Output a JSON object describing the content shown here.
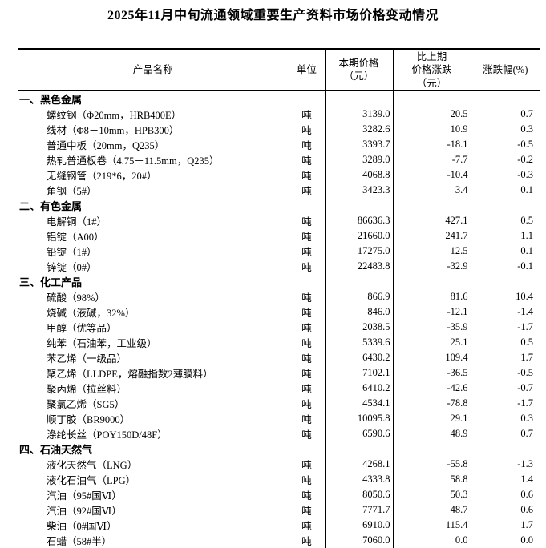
{
  "title": "2025年11月中旬流通领域重要生产资料市场价格变动情况",
  "table": {
    "headers": [
      "产品名称",
      "单位",
      "本期价格\n（元）",
      "比上期\n价格涨跌\n（元）",
      "涨跌幅(%)"
    ],
    "sections": [
      {
        "name": "一、黑色金属",
        "rows": [
          {
            "name": "螺纹钢（Φ20mm，HRB400E）",
            "unit": "吨",
            "price": "3139.0",
            "change": "20.5",
            "pct": "0.7"
          },
          {
            "name": "线材（Φ8－10mm，HPB300）",
            "unit": "吨",
            "price": "3282.6",
            "change": "10.9",
            "pct": "0.3"
          },
          {
            "name": "普通中板（20mm，Q235）",
            "unit": "吨",
            "price": "3393.7",
            "change": "-18.1",
            "pct": "-0.5"
          },
          {
            "name": "热轧普通板卷（4.75－11.5mm，Q235）",
            "unit": "吨",
            "price": "3289.0",
            "change": "-7.7",
            "pct": "-0.2"
          },
          {
            "name": "无缝钢管（219*6，20#）",
            "unit": "吨",
            "price": "4068.8",
            "change": "-10.4",
            "pct": "-0.3"
          },
          {
            "name": "角钢（5#）",
            "unit": "吨",
            "price": "3423.3",
            "change": "3.4",
            "pct": "0.1"
          }
        ]
      },
      {
        "name": "二、有色金属",
        "rows": [
          {
            "name": "电解铜（1#）",
            "unit": "吨",
            "price": "86636.3",
            "change": "427.1",
            "pct": "0.5"
          },
          {
            "name": "铝锭（A00）",
            "unit": "吨",
            "price": "21660.0",
            "change": "241.7",
            "pct": "1.1"
          },
          {
            "name": "铅锭（1#）",
            "unit": "吨",
            "price": "17275.0",
            "change": "12.5",
            "pct": "0.1"
          },
          {
            "name": "锌锭（0#）",
            "unit": "吨",
            "price": "22483.8",
            "change": "-32.9",
            "pct": "-0.1"
          }
        ]
      },
      {
        "name": "三、化工产品",
        "rows": [
          {
            "name": "硫酸（98%）",
            "unit": "吨",
            "price": "866.9",
            "change": "81.6",
            "pct": "10.4"
          },
          {
            "name": "烧碱（液碱，32%）",
            "unit": "吨",
            "price": "846.0",
            "change": "-12.1",
            "pct": "-1.4"
          },
          {
            "name": "甲醇（优等品）",
            "unit": "吨",
            "price": "2038.5",
            "change": "-35.9",
            "pct": "-1.7"
          },
          {
            "name": "纯苯（石油苯，工业级）",
            "unit": "吨",
            "price": "5339.6",
            "change": "25.1",
            "pct": "0.5"
          },
          {
            "name": "苯乙烯（一级品）",
            "unit": "吨",
            "price": "6430.2",
            "change": "109.4",
            "pct": "1.7"
          },
          {
            "name": "聚乙烯（LLDPE，熔融指数2薄膜料）",
            "unit": "吨",
            "price": "7102.1",
            "change": "-36.5",
            "pct": "-0.5"
          },
          {
            "name": "聚丙烯（拉丝料）",
            "unit": "吨",
            "price": "6410.2",
            "change": "-42.6",
            "pct": "-0.7"
          },
          {
            "name": "聚氯乙烯（SG5）",
            "unit": "吨",
            "price": "4534.1",
            "change": "-78.8",
            "pct": "-1.7"
          },
          {
            "name": "顺丁胶（BR9000）",
            "unit": "吨",
            "price": "10095.8",
            "change": "29.1",
            "pct": "0.3"
          },
          {
            "name": "涤纶长丝（POY150D/48F）",
            "unit": "吨",
            "price": "6590.6",
            "change": "48.9",
            "pct": "0.7"
          }
        ]
      },
      {
        "name": "四、石油天然气",
        "rows": [
          {
            "name": "液化天然气（LNG）",
            "unit": "吨",
            "price": "4268.1",
            "change": "-55.8",
            "pct": "-1.3"
          },
          {
            "name": "液化石油气（LPG）",
            "unit": "吨",
            "price": "4333.8",
            "change": "58.8",
            "pct": "1.4"
          },
          {
            "name": "汽油（95#国Ⅵ）",
            "unit": "吨",
            "price": "8050.6",
            "change": "50.3",
            "pct": "0.6"
          },
          {
            "name": "汽油（92#国Ⅵ）",
            "unit": "吨",
            "price": "7771.7",
            "change": "48.7",
            "pct": "0.6"
          },
          {
            "name": "柴油（0#国Ⅵ）",
            "unit": "吨",
            "price": "6910.0",
            "change": "115.4",
            "pct": "1.7"
          },
          {
            "name": "石蜡（58#半）",
            "unit": "吨",
            "price": "7060.0",
            "change": "0.0",
            "pct": "0.0"
          }
        ]
      }
    ]
  }
}
